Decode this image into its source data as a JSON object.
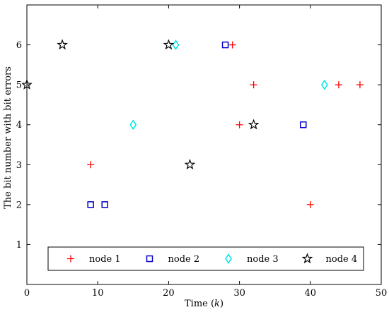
{
  "chart_data": {
    "type": "scatter",
    "xlabel": "Time (k)",
    "ylabel": "The bit number with bit errors",
    "xlim": [
      0,
      50
    ],
    "ylim": [
      0,
      7
    ],
    "xticks": [
      0,
      10,
      20,
      30,
      40,
      50
    ],
    "yticks": [
      1,
      2,
      3,
      4,
      5,
      6
    ],
    "grid": false,
    "legend_position": "bottom",
    "series": [
      {
        "name": "node 1",
        "marker": "plus",
        "color": "#ff0000",
        "points": [
          [
            9,
            3
          ],
          [
            29,
            6
          ],
          [
            30,
            4
          ],
          [
            32,
            5
          ],
          [
            40,
            2
          ],
          [
            44,
            5
          ],
          [
            47,
            5
          ]
        ]
      },
      {
        "name": "node 2",
        "marker": "square",
        "color": "#0000cc",
        "points": [
          [
            9,
            2
          ],
          [
            11,
            2
          ],
          [
            28,
            6
          ],
          [
            39,
            4
          ]
        ]
      },
      {
        "name": "node 3",
        "marker": "diamond",
        "color": "#00e5e5",
        "points": [
          [
            15,
            4
          ],
          [
            21,
            6
          ],
          [
            42,
            5
          ]
        ]
      },
      {
        "name": "node 4",
        "marker": "star",
        "color": "#000000",
        "points": [
          [
            0,
            5
          ],
          [
            5,
            6
          ],
          [
            20,
            6
          ],
          [
            23,
            3
          ],
          [
            32,
            4
          ]
        ]
      }
    ]
  }
}
